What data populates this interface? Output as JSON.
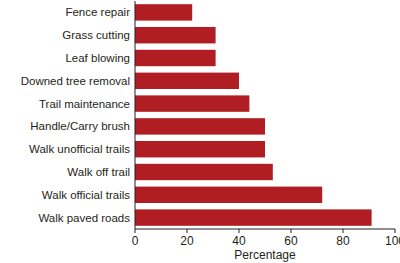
{
  "chart_data": {
    "type": "bar",
    "orientation": "horizontal",
    "categories": [
      "Fence repair",
      "Grass cutting",
      "Leaf blowing",
      "Downed tree removal",
      "Trail maintenance",
      "Handle/Carry brush",
      "Walk unofficial trails",
      "Walk off trail",
      "Walk official  trails",
      "Walk paved roads"
    ],
    "values": [
      22,
      31,
      31,
      40,
      44,
      50,
      50,
      53,
      72,
      91
    ],
    "color": "#b01e23",
    "x_label": "Percentage",
    "xlim": [
      0,
      100
    ],
    "xticks": [
      0,
      20,
      40,
      60,
      80,
      100
    ],
    "grid": false
  }
}
